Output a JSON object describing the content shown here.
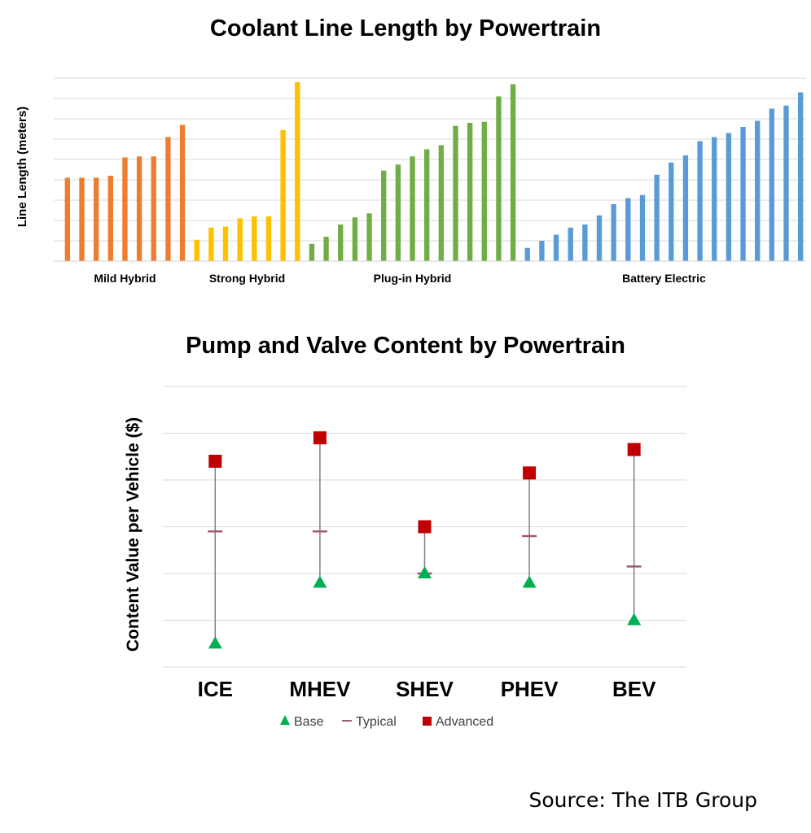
{
  "chart_data": [
    {
      "type": "bar",
      "title": "Coolant Line Length by Powertrain",
      "xlabel": "",
      "ylabel": "Line Length (meters)",
      "ylim": [
        0,
        9
      ],
      "y_tick_labels_shown": false,
      "grid": true,
      "legend": "none",
      "groups": [
        {
          "name": "Mild Hybrid",
          "color": "#ED7D31",
          "values": [
            4.1,
            4.1,
            4.1,
            4.2,
            5.1,
            5.15,
            5.15,
            6.1,
            6.7
          ]
        },
        {
          "name": "Strong Hybrid",
          "color": "#FFC000",
          "values": [
            1.05,
            1.65,
            1.7,
            2.1,
            2.2,
            2.2,
            6.45,
            8.8
          ]
        },
        {
          "name": "Plug-in Hybrid",
          "color": "#70AD47",
          "values": [
            0.85,
            1.2,
            1.8,
            2.15,
            2.35,
            4.45,
            4.75,
            5.15,
            5.5,
            5.7,
            6.65,
            6.8,
            6.85,
            8.1,
            8.7
          ]
        },
        {
          "name": "Battery Electric",
          "color": "#5B9BD5",
          "values": [
            0.65,
            1.0,
            1.3,
            1.65,
            1.8,
            2.25,
            2.8,
            3.1,
            3.25,
            4.25,
            4.85,
            5.2,
            5.9,
            6.1,
            6.3,
            6.6,
            6.9,
            7.5,
            7.65,
            8.3
          ]
        }
      ]
    },
    {
      "type": "range",
      "title": "Pump and Valve Content by Powertrain",
      "xlabel": "",
      "ylabel": "Content Value per Vehicle ($)",
      "ylim": [
        0,
        6
      ],
      "y_tick_labels_shown": false,
      "grid": true,
      "legend": "bottom",
      "categories": [
        "ICE",
        "MHEV",
        "SHEV",
        "PHEV",
        "BEV"
      ],
      "series": [
        {
          "name": "Base",
          "color": "#00B050",
          "marker": "triangle",
          "values": [
            0.5,
            1.8,
            2.0,
            1.8,
            1.0
          ]
        },
        {
          "name": "Typical",
          "color": "#A05A6E",
          "marker": "dash",
          "values": [
            2.9,
            2.9,
            2.0,
            2.8,
            2.15
          ]
        },
        {
          "name": "Advanced",
          "color": "#C00000",
          "marker": "square",
          "values": [
            4.4,
            4.9,
            3.0,
            4.15,
            4.65
          ]
        }
      ]
    }
  ],
  "footer": {
    "source": "Source: The ITB Group"
  }
}
